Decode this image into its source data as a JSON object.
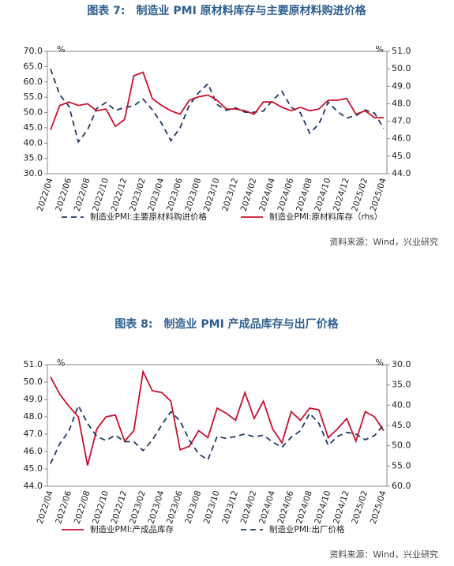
{
  "chart_data": [
    {
      "type": "line",
      "title": "图表 7:　制造业 PMI 原材料库存与主要原材料购进价格",
      "y_unit": "%",
      "y2_unit": "%",
      "source": "资料来源：Wind，兴业研究",
      "categories": [
        "2022/04",
        null,
        "2022/06",
        null,
        "2022/08",
        null,
        "2022/10",
        null,
        "2022/12",
        null,
        "2023/02",
        null,
        "2023/04",
        null,
        "2023/06",
        null,
        "2023/08",
        null,
        "2023/10",
        null,
        "2023/12",
        null,
        "2024/02",
        null,
        "2024/04",
        null,
        "2024/06",
        null,
        "2024/08",
        null,
        "2024/10",
        null,
        "2024/12",
        null,
        "2025/02",
        null,
        "2025/04"
      ],
      "ylim": [
        30,
        70
      ],
      "yticks": [
        {
          "value": 30,
          "label": "30.0"
        },
        {
          "value": 35,
          "label": "35.0"
        },
        {
          "value": 40,
          "label": "40.0"
        },
        {
          "value": 45,
          "label": "45.0"
        },
        {
          "value": 50,
          "label": "50.0"
        },
        {
          "value": 55,
          "label": "55.0"
        },
        {
          "value": 60,
          "label": "60.0"
        },
        {
          "value": 65,
          "label": "65.0"
        },
        {
          "value": 70,
          "label": "70.0"
        }
      ],
      "y2lim": [
        44,
        51
      ],
      "y2_inverted": false,
      "y2ticks": [
        {
          "value": 44,
          "label": "44.0"
        },
        {
          "value": 45,
          "label": "45.0"
        },
        {
          "value": 46,
          "label": "46.0"
        },
        {
          "value": 47,
          "label": "47.0"
        },
        {
          "value": 48,
          "label": "48.0"
        },
        {
          "value": 49,
          "label": "49.0"
        },
        {
          "value": 50,
          "label": "50.0"
        },
        {
          "value": 51,
          "label": "51.0"
        }
      ],
      "series": [
        {
          "name": "制造业PMI:主要原材料购进价格",
          "color": "#1f3864",
          "dashed": true,
          "axis": "y",
          "values": [
            64.2,
            55.8,
            52.0,
            40.4,
            44.3,
            51.3,
            53.3,
            50.7,
            51.6,
            52.2,
            54.4,
            50.9,
            46.4,
            40.8,
            45.0,
            52.4,
            56.5,
            59.4,
            52.6,
            50.7,
            51.5,
            50.1,
            50.1,
            50.5,
            54.0,
            56.9,
            51.7,
            49.9,
            43.2,
            46.2,
            53.4,
            50.3,
            48.2,
            49.0,
            50.8,
            49.8,
            44.8
          ]
        },
        {
          "name": "制造业PMI:原材料库存（rhs）",
          "color": "#c8102e",
          "dashed": false,
          "axis": "y2",
          "values": [
            46.5,
            47.9,
            48.1,
            47.9,
            48.0,
            47.6,
            47.7,
            46.7,
            47.1,
            49.6,
            49.8,
            48.3,
            47.9,
            47.6,
            47.4,
            48.2,
            48.4,
            48.5,
            48.2,
            47.7,
            47.7,
            47.6,
            47.4,
            48.1,
            48.1,
            47.8,
            47.6,
            47.8,
            47.6,
            47.7,
            48.2,
            48.2,
            48.3,
            47.4,
            47.6,
            47.2,
            47.2
          ]
        }
      ]
    },
    {
      "type": "line",
      "title": "图表 8:　制造业 PMI 产成品库存与出厂价格",
      "y_unit": "%",
      "y2_unit": "%",
      "source": "资料来源：Wind，兴业研究",
      "categories": [
        "2022/04",
        null,
        "2022/06",
        null,
        "2022/08",
        null,
        "2022/10",
        null,
        "2022/12",
        null,
        "2023/02",
        null,
        "2023/04",
        null,
        "2023/06",
        null,
        "2023/08",
        null,
        "2023/10",
        null,
        "2023/12",
        null,
        "2024/02",
        null,
        "2024/04",
        null,
        "2024/06",
        null,
        "2024/08",
        null,
        "2024/10",
        null,
        "2024/12",
        null,
        "2025/02",
        null,
        "2025/04"
      ],
      "ylim": [
        44,
        51
      ],
      "yticks": [
        {
          "value": 44,
          "label": "44.0"
        },
        {
          "value": 45,
          "label": "45.0"
        },
        {
          "value": 46,
          "label": "46.0"
        },
        {
          "value": 47,
          "label": "47.0"
        },
        {
          "value": 48,
          "label": "48.0"
        },
        {
          "value": 49,
          "label": "49.0"
        },
        {
          "value": 50,
          "label": "50.0"
        },
        {
          "value": 51,
          "label": "51.0"
        }
      ],
      "y2lim": [
        30,
        60
      ],
      "y2_inverted": true,
      "y2ticks": [
        {
          "value": 30,
          "label": "30.0"
        },
        {
          "value": 35,
          "label": "35.0"
        },
        {
          "value": 40,
          "label": "40.0"
        },
        {
          "value": 45,
          "label": "45.0"
        },
        {
          "value": 50,
          "label": "50.0"
        },
        {
          "value": 55,
          "label": "55.0"
        },
        {
          "value": 60,
          "label": "60.0"
        }
      ],
      "series": [
        {
          "name": "制造业PMI:产成品库存",
          "color": "#c8102e",
          "dashed": false,
          "axis": "y",
          "values": [
            50.3,
            49.3,
            48.6,
            48.0,
            45.2,
            47.3,
            48.0,
            48.1,
            46.6,
            47.2,
            50.6,
            49.5,
            49.4,
            48.9,
            46.1,
            46.3,
            47.2,
            46.8,
            48.5,
            48.2,
            47.8,
            49.4,
            47.9,
            48.9,
            47.3,
            46.5,
            48.3,
            47.8,
            48.5,
            48.4,
            46.8,
            47.3,
            47.9,
            46.6,
            48.3,
            48.0,
            47.2
          ]
        },
        {
          "name": "制造业PMI:出厂价格",
          "color": "#1f3864",
          "dashed": true,
          "axis": "y2",
          "values": [
            54.4,
            49.5,
            46.3,
            40.1,
            44.5,
            47.7,
            48.7,
            47.4,
            49.0,
            49.0,
            51.2,
            48.6,
            44.9,
            41.6,
            43.9,
            48.6,
            52.0,
            53.5,
            47.7,
            48.2,
            47.7,
            47.1,
            47.8,
            47.4,
            49.1,
            50.4,
            47.9,
            46.3,
            42.0,
            44.5,
            49.9,
            47.7,
            46.7,
            47.1,
            48.5,
            47.5,
            44.8
          ]
        }
      ]
    }
  ]
}
